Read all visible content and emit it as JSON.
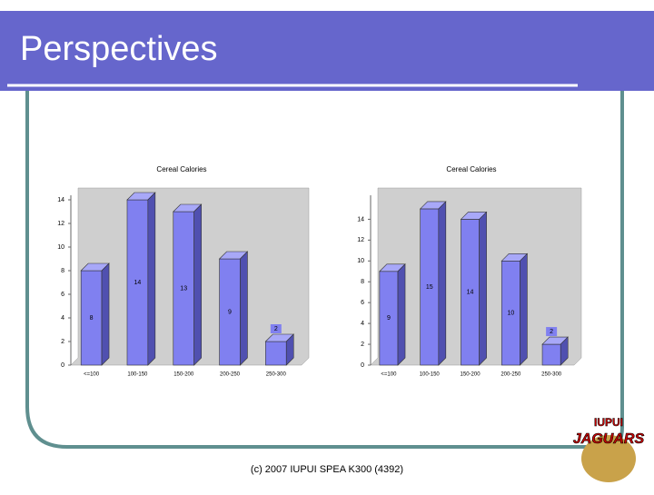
{
  "header": {
    "title": "Perspectives"
  },
  "footer": "(c) 2007 IUPUI SPEA K300 (4392)",
  "logo": {
    "top": "IUPUI",
    "bottom": "JAGUARS"
  },
  "chart_data": [
    {
      "type": "bar",
      "title": "Cereal Calories",
      "categories": [
        "<=100",
        "100-150",
        "150-200",
        "200-250",
        "250-300"
      ],
      "values": [
        8,
        14,
        13,
        9,
        2
      ],
      "color": "#8080f0",
      "ylim": [
        0,
        15
      ],
      "yticks": [
        0,
        2,
        4,
        6,
        8,
        10,
        12,
        14
      ]
    },
    {
      "type": "bar",
      "title": "Cereal Calories",
      "categories": [
        "<=100",
        "100-150",
        "150-200",
        "200-250",
        "250-300"
      ],
      "values": [
        9,
        15,
        14,
        10,
        2
      ],
      "color": "#8080f0",
      "ylim": [
        0,
        17
      ],
      "yticks": [
        0,
        2,
        4,
        6,
        8,
        10,
        12,
        14
      ]
    }
  ]
}
